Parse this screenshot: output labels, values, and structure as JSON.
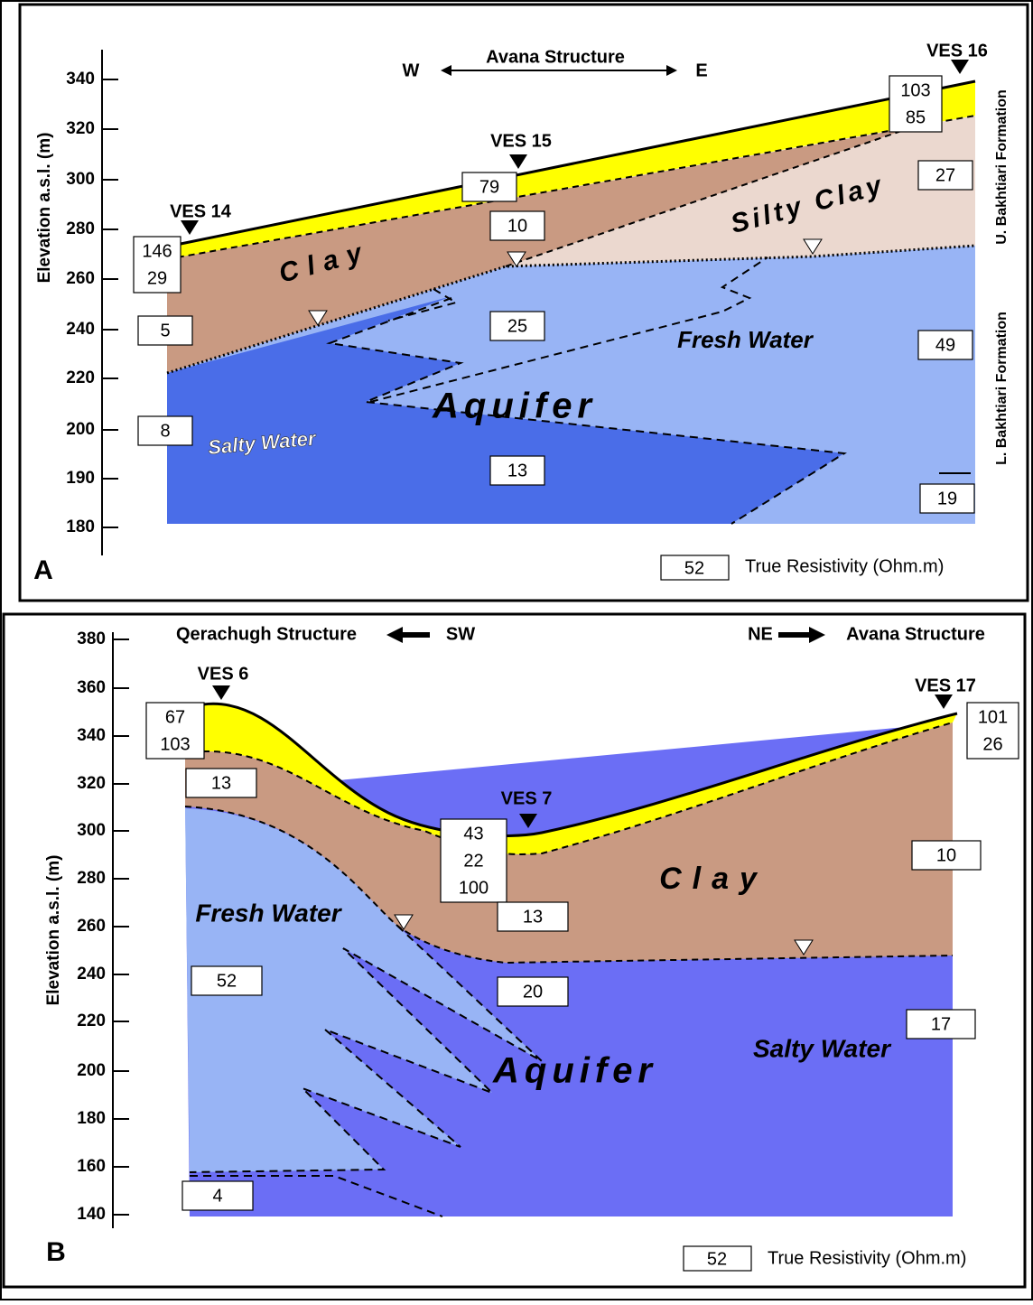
{
  "panels": [
    {
      "label": "A",
      "axis_title": "Elevation a.s.l. (m)",
      "ticks": [
        "340",
        "320",
        "300",
        "280",
        "260",
        "240",
        "220",
        "200",
        "190",
        "180"
      ],
      "direction": [
        "W",
        "Avana Structure",
        "E"
      ],
      "stations": [
        "VES 14",
        "VES 15",
        "VES 16"
      ],
      "resistivity": [
        [
          "146",
          "29"
        ],
        [
          "5"
        ],
        [
          "8"
        ],
        [
          "79"
        ],
        [
          "10"
        ],
        [
          "25"
        ],
        [
          "13"
        ],
        [
          "103",
          "85"
        ],
        [
          "27"
        ],
        [
          "49"
        ],
        [
          "19"
        ]
      ],
      "units": [
        "Clay",
        "Silty Clay",
        "Fresh Water",
        "Aquifer",
        "Salty Water"
      ],
      "formations": [
        "U. Bakhtiari Formation",
        "L. Bakhtiari Formation"
      ],
      "legend": {
        "sample": "52",
        "text": "True Resistivity (Ohm.m)"
      }
    },
    {
      "label": "B",
      "axis_title": "Elevation a.s.l. (m)",
      "ticks": [
        "380",
        "360",
        "340",
        "320",
        "300",
        "280",
        "260",
        "240",
        "220",
        "200",
        "180",
        "160",
        "140"
      ],
      "direction": [
        "Qerachugh Structure",
        "SW",
        "NE",
        "Avana Structure"
      ],
      "stations": [
        "VES 6",
        "VES 7",
        "VES 17"
      ],
      "resistivity": [
        [
          "67",
          "103"
        ],
        [
          "13"
        ],
        [
          "43",
          "22",
          "100"
        ],
        [
          "13"
        ],
        [
          "20"
        ],
        [
          "52"
        ],
        [
          "4"
        ],
        [
          "101",
          "26"
        ],
        [
          "10"
        ],
        [
          "17"
        ]
      ],
      "units": [
        "Fresh Water",
        "Clay",
        "Aquifer",
        "Salty Water"
      ],
      "legend": {
        "sample": "52",
        "text": "True Resistivity (Ohm.m)"
      }
    }
  ]
}
